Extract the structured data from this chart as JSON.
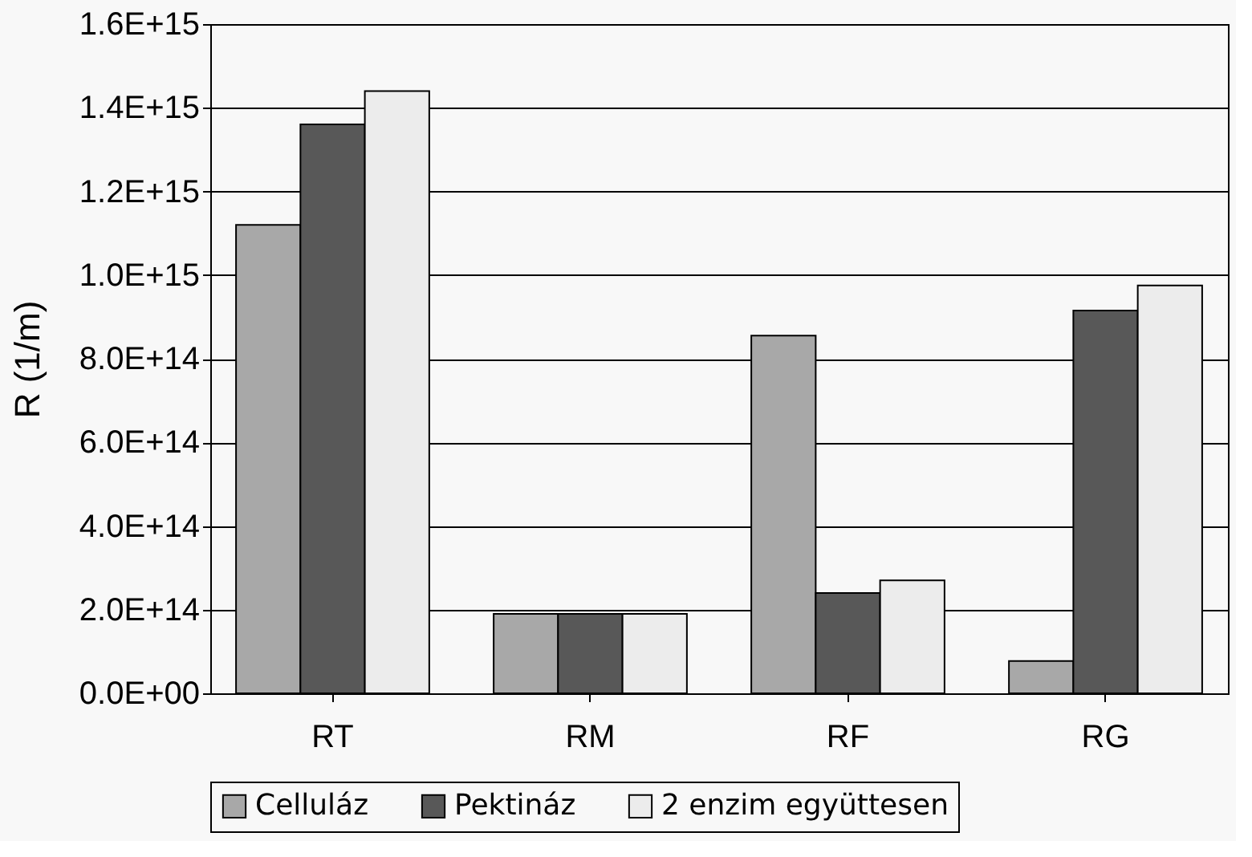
{
  "chart_data": {
    "type": "bar",
    "ylabel": "R (1/m)",
    "categories": [
      "RT",
      "RM",
      "RF",
      "RG"
    ],
    "series": [
      {
        "name": "Celluláz",
        "color": "#a8a8a8",
        "values": [
          1120000000000000.0,
          190000000000000.0,
          855000000000000.0,
          77000000000000.0
        ]
      },
      {
        "name": "Pektináz",
        "color": "#585858",
        "values": [
          1360000000000000.0,
          190000000000000.0,
          240000000000000.0,
          915000000000000.0
        ]
      },
      {
        "name": "2 enzim együttesen",
        "color": "#ececec",
        "values": [
          1440000000000000.0,
          190000000000000.0,
          270000000000000.0,
          975000000000000.0
        ]
      }
    ],
    "ylim": [
      0,
      1600000000000000.0
    ],
    "yticks": [
      {
        "value": 0,
        "label": "0.0E+00"
      },
      {
        "value": 200000000000000.0,
        "label": "2.0E+14"
      },
      {
        "value": 400000000000000.0,
        "label": "4.0E+14"
      },
      {
        "value": 600000000000000.0,
        "label": "6.0E+14"
      },
      {
        "value": 800000000000000.0,
        "label": "8.0E+14"
      },
      {
        "value": 1000000000000000.0,
        "label": "1.0E+15"
      },
      {
        "value": 1200000000000000.0,
        "label": "1.2E+15"
      },
      {
        "value": 1400000000000000.0,
        "label": "1.4E+15"
      },
      {
        "value": 1600000000000000.0,
        "label": "1.6E+15"
      }
    ],
    "grid": "y",
    "legend": "bottom"
  }
}
